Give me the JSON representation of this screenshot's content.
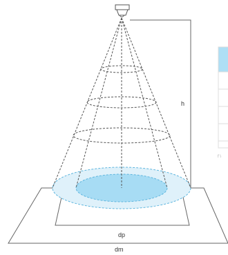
{
  "diagram": {
    "labels": {
      "height": "h",
      "diameter_primary": "dp",
      "diameter_max": "dm"
    },
    "colors": {
      "outer_ellipse_fill": "#dff1fa",
      "inner_ellipse_fill": "#a7dcf4",
      "ellipse_stroke": "#5fb6de",
      "lines": "#666666",
      "table_header": "#aedff5"
    },
    "icons": {
      "fixture": "ceiling-fixture-icon"
    },
    "table": {
      "rows": [
        "",
        "",
        "",
        "",
        ""
      ],
      "footnote": "f \\"
    }
  }
}
